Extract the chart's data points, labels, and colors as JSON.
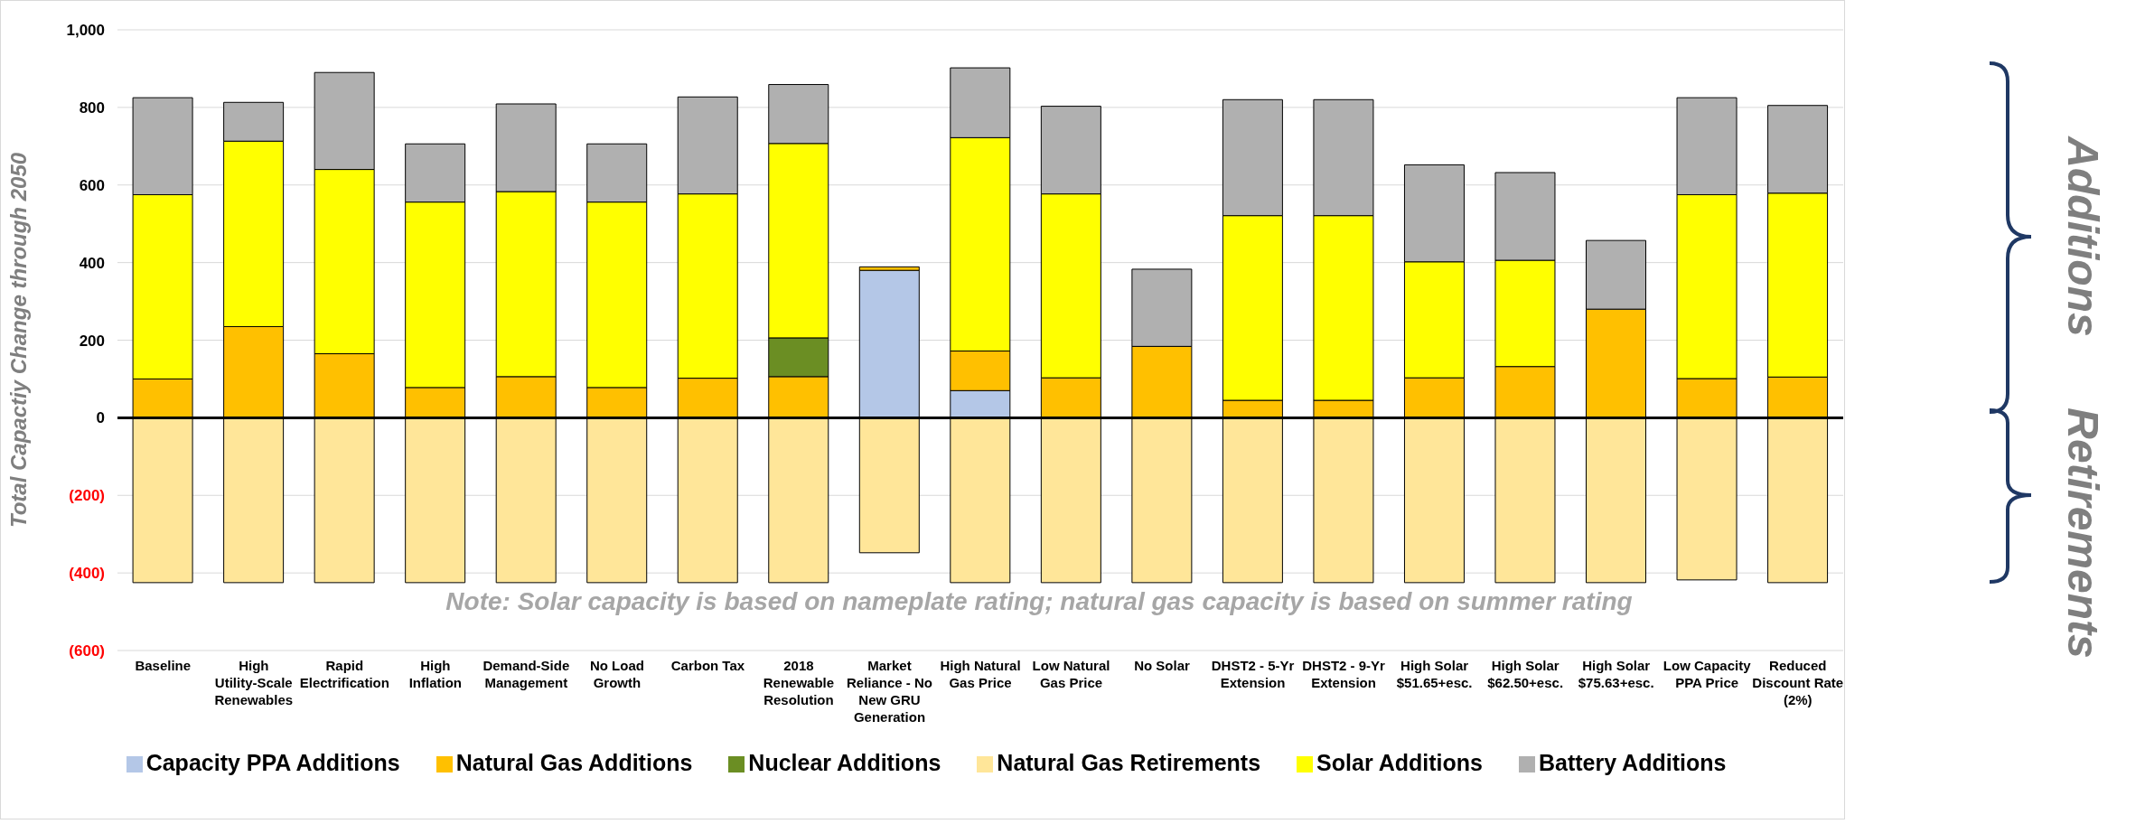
{
  "chart_data": {
    "type": "bar",
    "stacked": true,
    "ylabel": "Total Capactiy Change through 2050",
    "categories": [
      "Baseline",
      "High Utility-Scale Renewables",
      "Rapid Electrification",
      "High Inflation",
      "Demand-Side Management",
      "No Load Growth",
      "Carbon Tax",
      "2018 Renewable Resolution",
      "Market Reliance - No New GRU Generation",
      "High Natural Gas Price",
      "Low Natural Gas Price",
      "No Solar",
      "DHST2 - 5-Yr Extension",
      "DHST2 - 9-Yr Extension",
      "High Solar $51.65+esc.",
      "High Solar $62.50+esc.",
      "High Solar $75.63+esc.",
      "Low Capacity PPA Price",
      "Reduced Discount Rate (2%)"
    ],
    "series": [
      {
        "name": "Capacity PPA Additions",
        "color": "#b4c7e7",
        "values": [
          0,
          0,
          0,
          0,
          0,
          0,
          0,
          0,
          380,
          70,
          0,
          0,
          0,
          0,
          0,
          0,
          0,
          0,
          0
        ]
      },
      {
        "name": "Natural Gas Additions",
        "color": "#ffc000",
        "values": [
          100,
          235,
          165,
          78,
          106,
          78,
          102,
          106,
          9,
          102,
          103,
          184,
          45,
          45,
          103,
          132,
          280,
          101,
          105
        ]
      },
      {
        "name": "Nuclear Additions",
        "color": "#6b8e23",
        "values": [
          0,
          0,
          0,
          0,
          0,
          0,
          0,
          100,
          0,
          0,
          0,
          0,
          0,
          0,
          0,
          0,
          0,
          0,
          0
        ]
      },
      {
        "name": "Natural Gas Retirements",
        "color": "#ffe699",
        "values": [
          -425,
          -425,
          -425,
          -425,
          -425,
          -425,
          -425,
          -425,
          -348,
          -425,
          -425,
          -425,
          -425,
          -425,
          -425,
          -425,
          -425,
          -418,
          -425
        ]
      },
      {
        "name": "Solar Additions",
        "color": "#ffff00",
        "values": [
          475,
          478,
          475,
          478,
          477,
          478,
          475,
          501,
          0,
          550,
          474,
          0,
          476,
          476,
          299,
          274,
          0,
          474,
          474
        ]
      },
      {
        "name": "Battery Additions",
        "color": "#b0b0b0",
        "values": [
          250,
          100,
          250,
          150,
          226,
          150,
          250,
          152,
          0,
          180,
          226,
          199,
          299,
          299,
          250,
          226,
          177,
          250,
          226
        ]
      }
    ],
    "ylim": [
      -600,
      1000
    ],
    "yticks": [
      {
        "value": -600,
        "label": "(600)"
      },
      {
        "value": -400,
        "label": "(400)"
      },
      {
        "value": -200,
        "label": "(200)"
      },
      0,
      {
        "value": 200,
        "label": "200"
      },
      {
        "value": 400,
        "label": "400"
      },
      {
        "value": 600,
        "label": "600"
      },
      {
        "value": 800,
        "label": "800"
      },
      {
        "value": 1000,
        "label": "1,000"
      }
    ],
    "grid": "y",
    "legend": "bottom",
    "ref_lines": [
      {
        "axis": "y",
        "value": 0,
        "color": "#000000"
      }
    ],
    "annotations": [
      "Note: Solar capacity is based on nameplate rating; natural gas capacity is based on summer rating",
      "Additions",
      "Retirements"
    ]
  }
}
